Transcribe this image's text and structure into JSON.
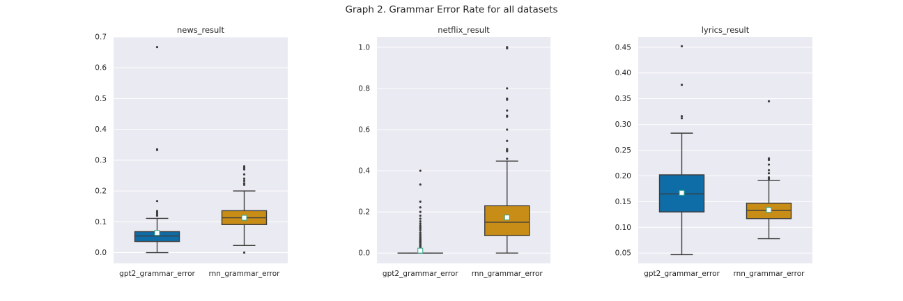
{
  "figure": {
    "title": "Graph 2. Grammar Error Rate for all datasets"
  },
  "colors": {
    "plot_bg": "#eaeaf2",
    "grid": "#ffffff",
    "line": "#3d3d3d",
    "mean_fill": "#ffffff",
    "mean_edge": "#2ca58d"
  },
  "chart_data": [
    {
      "type": "box",
      "title": "news_result",
      "categories": [
        "gpt2_grammar_error",
        "rnn_grammar_error"
      ],
      "ylim": [
        -0.035,
        0.7
      ],
      "yticks": [
        0.0,
        0.1,
        0.2,
        0.3,
        0.4,
        0.5,
        0.6,
        0.7
      ],
      "ytick_labels": [
        "0.0",
        "0.1",
        "0.2",
        "0.3",
        "0.4",
        "0.5",
        "0.6",
        "0.7"
      ],
      "grid": true,
      "boxes": [
        {
          "name": "gpt2_grammar_error",
          "color": "#0e6ca6",
          "whisker_low": 0.0,
          "q1": 0.036,
          "median": 0.054,
          "q3": 0.068,
          "whisker_high": 0.111,
          "mean": 0.064,
          "outliers": [
            0.667,
            0.335,
            0.333,
            0.167,
            0.135,
            0.13,
            0.125,
            0.12
          ]
        },
        {
          "name": "rnn_grammar_error",
          "color": "#c78d17",
          "whisker_low": 0.023,
          "q1": 0.091,
          "median": 0.113,
          "q3": 0.136,
          "whisker_high": 0.2,
          "mean": 0.113,
          "outliers": [
            0.28,
            0.275,
            0.27,
            0.254,
            0.24,
            0.233,
            0.225,
            0.22,
            0.0
          ]
        }
      ]
    },
    {
      "type": "box",
      "title": "netflix_result",
      "categories": [
        "gpt2_grammar_error",
        "rnn_grammar_error"
      ],
      "ylim": [
        -0.05,
        1.05
      ],
      "yticks": [
        0.0,
        0.2,
        0.4,
        0.6,
        0.8,
        1.0
      ],
      "ytick_labels": [
        "0.0",
        "0.2",
        "0.4",
        "0.6",
        "0.8",
        "1.0"
      ],
      "grid": true,
      "boxes": [
        {
          "name": "gpt2_grammar_error",
          "color": "#0e6ca6",
          "whisker_low": 0.0,
          "q1": 0.0,
          "median": 0.0,
          "q3": 0.0,
          "whisker_high": 0.0,
          "mean": 0.012,
          "outliers": [
            0.4,
            0.333,
            0.25,
            0.222,
            0.2,
            0.182,
            0.167,
            0.154,
            0.143,
            0.133,
            0.125,
            0.118,
            0.111,
            0.1,
            0.091,
            0.083,
            0.077,
            0.071,
            0.067,
            0.063,
            0.059,
            0.056,
            0.053,
            0.05,
            0.045,
            0.04,
            0.036,
            0.033,
            0.03,
            0.025,
            0.02
          ]
        },
        {
          "name": "rnn_grammar_error",
          "color": "#c78d17",
          "whisker_low": 0.0,
          "q1": 0.085,
          "median": 0.15,
          "q3": 0.23,
          "whisker_high": 0.447,
          "mean": 0.173,
          "outliers": [
            1.0,
            0.995,
            0.8,
            0.75,
            0.745,
            0.692,
            0.667,
            0.663,
            0.6,
            0.545,
            0.505,
            0.5,
            0.495,
            0.458
          ]
        }
      ]
    },
    {
      "type": "box",
      "title": "lyrics_result",
      "categories": [
        "gpt2_grammar_error",
        "rnn_grammar_error"
      ],
      "ylim": [
        0.03,
        0.47
      ],
      "yticks": [
        0.05,
        0.1,
        0.15,
        0.2,
        0.25,
        0.3,
        0.35,
        0.4,
        0.45
      ],
      "ytick_labels": [
        "0.05",
        "0.10",
        "0.15",
        "0.20",
        "0.25",
        "0.30",
        "0.35",
        "0.40",
        "0.45"
      ],
      "grid": true,
      "boxes": [
        {
          "name": "gpt2_grammar_error",
          "color": "#0e6ca6",
          "whisker_low": 0.047,
          "q1": 0.13,
          "median": 0.165,
          "q3": 0.202,
          "whisker_high": 0.283,
          "mean": 0.167,
          "outliers": [
            0.452,
            0.377,
            0.316,
            0.312
          ]
        },
        {
          "name": "rnn_grammar_error",
          "color": "#c78d17",
          "whisker_low": 0.078,
          "q1": 0.117,
          "median": 0.133,
          "q3": 0.147,
          "whisker_high": 0.191,
          "mean": 0.134,
          "outliers": [
            0.345,
            0.234,
            0.231,
            0.222,
            0.211,
            0.205,
            0.197,
            0.194
          ]
        }
      ]
    }
  ]
}
